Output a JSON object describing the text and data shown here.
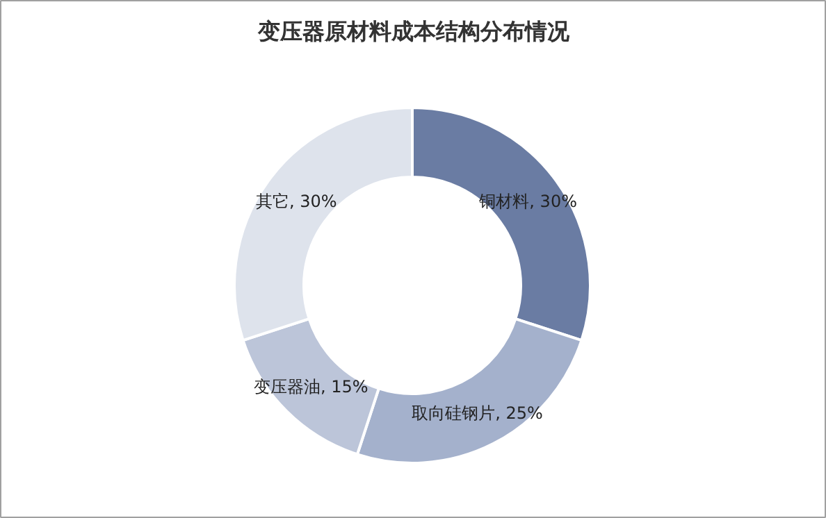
{
  "chart_data": {
    "type": "donut",
    "title": "变压器原材料成本结构分布情况",
    "categories": [
      "铜材料",
      "取向硅钢片",
      "变压器油",
      "其它"
    ],
    "values": [
      30,
      25,
      15,
      30
    ],
    "value_labels": [
      "30%",
      "25%",
      "15%",
      "30%"
    ],
    "colors": [
      "#6a7ca3",
      "#a4b1cc",
      "#bcc5d9",
      "#dee3ec"
    ]
  }
}
